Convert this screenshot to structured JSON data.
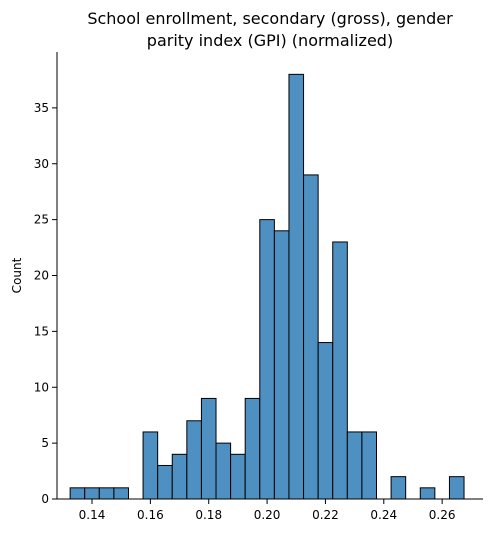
{
  "chart_data": {
    "type": "histogram",
    "title_lines": [
      "School enrollment, secondary (gross), gender",
      "parity index (GPI) (normalized)"
    ],
    "xlabel": "",
    "ylabel": "Count",
    "xlim": [
      0.128,
      0.274
    ],
    "ylim": [
      0,
      40
    ],
    "xticks": [
      0.14,
      0.16,
      0.18,
      0.2,
      0.22,
      0.24,
      0.26
    ],
    "xtick_labels": [
      "0.14",
      "0.16",
      "0.18",
      "0.20",
      "0.22",
      "0.24",
      "0.26"
    ],
    "yticks": [
      0,
      5,
      10,
      15,
      20,
      25,
      30,
      35
    ],
    "ytick_labels": [
      "0",
      "5",
      "10",
      "15",
      "20",
      "25",
      "30",
      "35"
    ],
    "bin_start": 0.1325,
    "bin_width": 0.005,
    "counts": [
      1,
      1,
      1,
      1,
      0,
      6,
      3,
      4,
      7,
      9,
      5,
      4,
      9,
      25,
      24,
      38,
      29,
      14,
      23,
      6,
      6,
      0,
      2,
      0,
      1,
      0,
      2
    ],
    "bar_color": "#4f90c2",
    "edge_color": "#000000",
    "grid": false
  }
}
